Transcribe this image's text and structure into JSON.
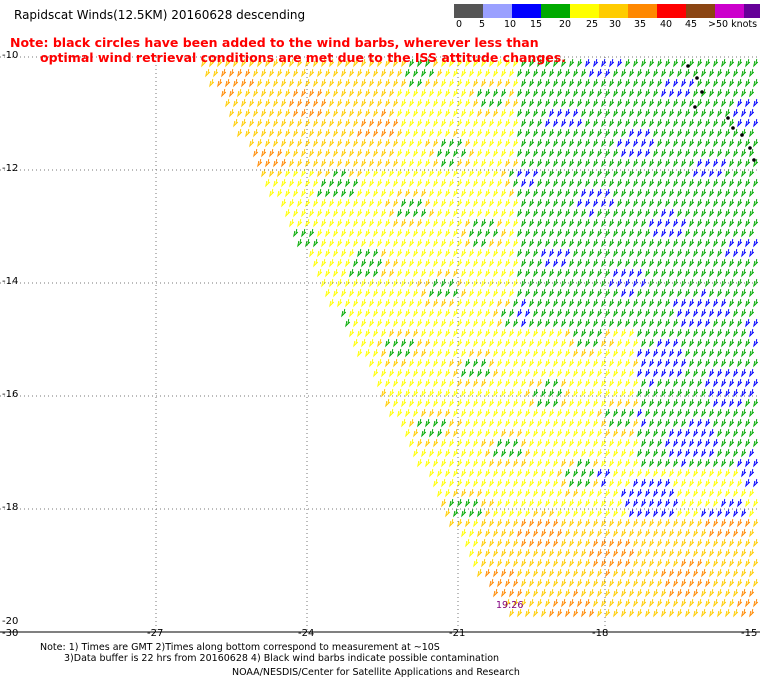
{
  "header": {
    "title": "Rapidscat Winds(12.5KM) 20160628 descending",
    "note_line1": "Note: black circles have been added to the wind barbs, wherever less than",
    "note_line2": "optimal wind retrieval conditions are met due to the ISS attitude changes."
  },
  "color_scale": {
    "labels": [
      "0",
      "5",
      "10",
      "15",
      "20",
      "25",
      "30",
      "35",
      "40",
      "45",
      ">50 knots"
    ],
    "colors": [
      "#555555",
      "#9aa0ff",
      "#0000ff",
      "#00aa00",
      "#ffff00",
      "#ffcc00",
      "#ff8800",
      "#ff0000",
      "#8b4513",
      "#cc00cc",
      "#660099"
    ]
  },
  "axes": {
    "lat_labels": [
      "-10",
      "-12",
      "-14",
      "-16",
      "-18",
      "-20"
    ],
    "lon_labels": [
      "-30",
      "-27",
      "-24",
      "-21",
      "-18",
      "-15"
    ]
  },
  "time_label": "19:26",
  "footer": {
    "note_line1": "Note: 1) Times are GMT 2)Times along bottom correspond to measurement at ~10S",
    "note_line2": "3)Data buffer is 22 hrs from 20160628 4) Black wind barbs indicate possible contamination",
    "credit": "NOAA/NESDIS/Center for Satellite Applications and Research"
  }
}
